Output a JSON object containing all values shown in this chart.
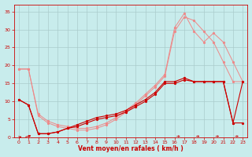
{
  "xlabel": "Vent moyen/en rafales ( km/h )",
  "xlim": [
    -0.5,
    23.5
  ],
  "ylim": [
    0,
    37
  ],
  "xticks": [
    0,
    1,
    2,
    3,
    4,
    5,
    6,
    7,
    8,
    9,
    10,
    11,
    12,
    13,
    14,
    15,
    16,
    17,
    18,
    19,
    20,
    21,
    22,
    23
  ],
  "yticks": [
    0,
    5,
    10,
    15,
    20,
    25,
    30,
    35
  ],
  "bg_color": "#c8ecec",
  "grid_color": "#aacccc",
  "line_color_dark": "#cc0000",
  "line_color_light": "#ee8888",
  "series_dark1": {
    "x": [
      0,
      1,
      2,
      3,
      4,
      5,
      6,
      7,
      8,
      9,
      10,
      11,
      12,
      13,
      14,
      15,
      16,
      17,
      18,
      19,
      20,
      21,
      22,
      23
    ],
    "y": [
      10.5,
      9.0,
      1.0,
      1.0,
      1.5,
      2.5,
      3.5,
      4.5,
      5.5,
      6.0,
      6.5,
      7.5,
      9.0,
      10.5,
      12.5,
      15.5,
      15.5,
      16.5,
      15.5,
      15.5,
      15.5,
      15.5,
      4.0,
      4.0
    ]
  },
  "series_dark2": {
    "x": [
      0,
      1,
      2,
      3,
      4,
      5,
      6,
      7,
      8,
      9,
      10,
      11,
      12,
      13,
      14,
      15,
      16,
      17,
      18,
      19,
      20,
      21,
      22,
      23
    ],
    "y": [
      10.5,
      9.0,
      1.0,
      1.0,
      1.5,
      2.5,
      3.0,
      4.0,
      5.0,
      5.5,
      6.0,
      7.0,
      8.5,
      10.0,
      12.0,
      15.0,
      15.0,
      16.0,
      15.5,
      15.5,
      15.5,
      15.5,
      4.0,
      15.5
    ]
  },
  "series_light1": {
    "x": [
      0,
      1,
      2,
      3,
      4,
      5,
      6,
      7,
      8,
      9,
      10,
      11,
      12,
      13,
      14,
      15,
      16,
      17,
      18,
      19,
      20,
      21,
      22,
      23
    ],
    "y": [
      19.0,
      19.0,
      6.0,
      4.0,
      3.0,
      2.5,
      2.0,
      2.0,
      2.5,
      3.5,
      5.0,
      7.0,
      9.0,
      11.5,
      14.0,
      17.0,
      29.5,
      33.5,
      32.5,
      29.5,
      26.5,
      21.0,
      15.5,
      15.5
    ]
  },
  "series_light2": {
    "x": [
      0,
      1,
      2,
      3,
      4,
      5,
      6,
      7,
      8,
      9,
      10,
      11,
      12,
      13,
      14,
      15,
      16,
      17,
      18,
      19,
      20,
      21,
      22,
      23
    ],
    "y": [
      19.0,
      19.0,
      6.5,
      4.5,
      3.5,
      3.0,
      2.5,
      2.5,
      3.0,
      4.0,
      5.5,
      7.5,
      9.5,
      12.0,
      14.5,
      17.5,
      30.5,
      34.5,
      29.5,
      26.5,
      29.0,
      26.5,
      21.0,
      15.5
    ]
  }
}
